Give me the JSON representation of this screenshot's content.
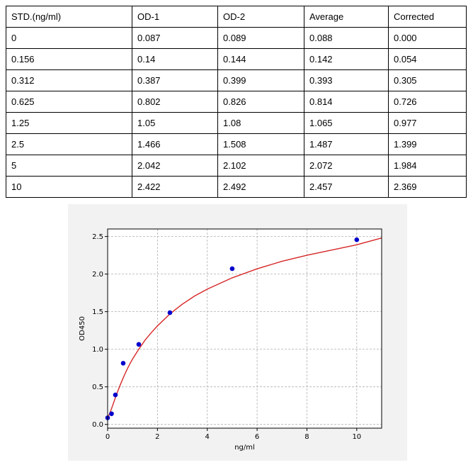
{
  "table": {
    "headers": [
      "STD.(ng/ml)",
      "OD-1",
      "OD-2",
      "Average",
      "Corrected"
    ],
    "rows": [
      [
        "0",
        "0.087",
        "0.089",
        "0.088",
        "0.000"
      ],
      [
        "0.156",
        "0.14",
        "0.144",
        "0.142",
        "0.054"
      ],
      [
        "0.312",
        "0.387",
        "0.399",
        "0.393",
        "0.305"
      ],
      [
        "0.625",
        "0.802",
        "0.826",
        "0.814",
        "0.726"
      ],
      [
        "1.25",
        "1.05",
        "1.08",
        "1.065",
        "0.977"
      ],
      [
        "2.5",
        "1.466",
        "1.508",
        "1.487",
        "1.399"
      ],
      [
        "5",
        "2.042",
        "2.102",
        "2.072",
        "1.984"
      ],
      [
        "10",
        "2.422",
        "2.492",
        "2.457",
        "2.369"
      ]
    ]
  },
  "chart_data": {
    "type": "scatter",
    "title": "",
    "xlabel": "ng/ml",
    "ylabel": "OD450",
    "xlim": [
      0,
      11
    ],
    "ylim": [
      -0.05,
      2.6
    ],
    "xticks": [
      0,
      2,
      4,
      6,
      8,
      10
    ],
    "yticks": [
      0.0,
      0.5,
      1.0,
      1.5,
      2.0,
      2.5
    ],
    "grid": true,
    "colors": {
      "points": "#0000cc",
      "curve": "#d62728"
    },
    "points": {
      "x": [
        0,
        0.156,
        0.312,
        0.625,
        1.25,
        2.5,
        5,
        10
      ],
      "y": [
        0.088,
        0.142,
        0.393,
        0.814,
        1.065,
        1.487,
        2.072,
        2.457
      ]
    },
    "fit_curve": {
      "x": [
        0,
        0.1,
        0.2,
        0.3,
        0.4,
        0.5,
        0.6,
        0.7,
        0.8,
        0.9,
        1.0,
        1.25,
        1.5,
        1.75,
        2.0,
        2.5,
        3.0,
        3.5,
        4.0,
        5.0,
        6.0,
        7.0,
        8.0,
        9.0,
        10.0,
        11.0
      ],
      "y": [
        0.085,
        0.16,
        0.25,
        0.345,
        0.435,
        0.52,
        0.6,
        0.675,
        0.745,
        0.81,
        0.87,
        1.0,
        1.12,
        1.22,
        1.31,
        1.47,
        1.6,
        1.71,
        1.8,
        1.95,
        2.07,
        2.17,
        2.25,
        2.32,
        2.39,
        2.48
      ]
    }
  }
}
